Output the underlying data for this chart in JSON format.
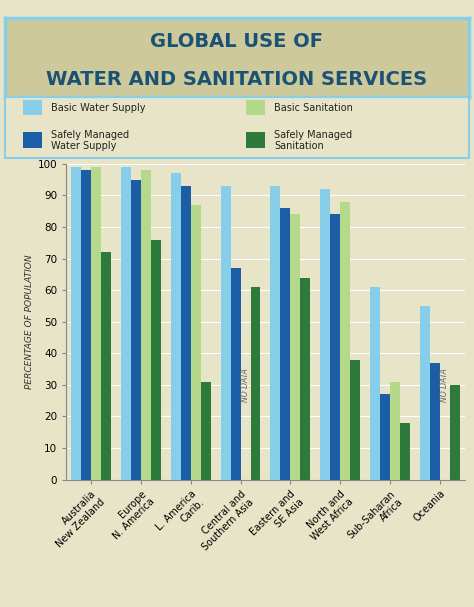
{
  "title_line1": "GLOBAL USE OF",
  "title_line2": "WATER AND SANITATION SERVICES",
  "title_color": "#1a5276",
  "title_bg_color": "#cdc99a",
  "bg_color": "#e8e4c8",
  "ylabel": "PERCENTAGE OF POPULATION",
  "ylim": [
    0,
    100
  ],
  "categories": [
    "Australia\nNew Zealand",
    "Europe\nN. America",
    "L. America\nCarib.",
    "Central and\nSouthern Asia",
    "Eastern and\nSE Asia",
    "North and\nWest Africa",
    "Sub-Saharan\nAfrica",
    "Oceania"
  ],
  "basic_water": [
    99,
    99,
    97,
    93,
    93,
    92,
    61,
    55
  ],
  "safely_managed_water": [
    98,
    95,
    93,
    67,
    86,
    84,
    27,
    37
  ],
  "basic_sanitation": [
    99,
    98,
    87,
    null,
    84,
    88,
    31,
    null
  ],
  "safely_managed_sanitation": [
    72,
    76,
    31,
    61,
    64,
    38,
    18,
    30
  ],
  "no_data_indices": [
    3,
    7
  ],
  "colors": {
    "basic_water": "#87ceeb",
    "safely_managed_water": "#1b5ea6",
    "basic_sanitation": "#b5d98a",
    "safely_managed_sanitation": "#2d7a3a"
  },
  "bar_width": 0.2,
  "border_color": "#87ceeb"
}
